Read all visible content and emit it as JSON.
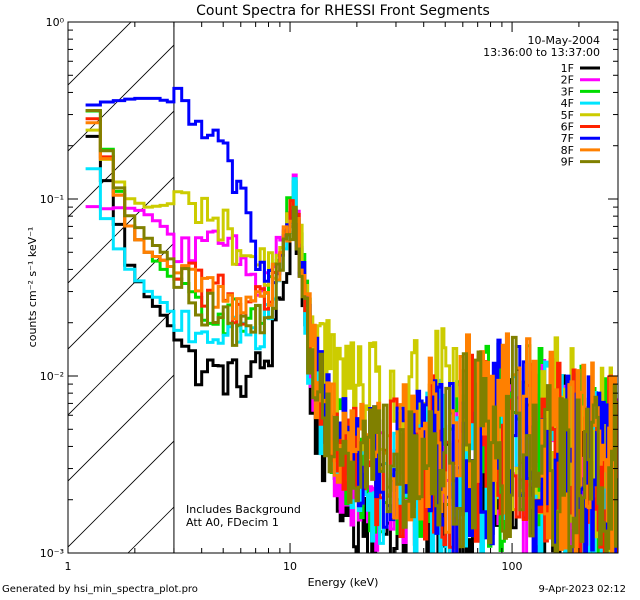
{
  "chart_data": {
    "type": "line",
    "title": "Count Spectra for RHESSI Front Segments",
    "xlabel": "Energy (keV)",
    "ylabel": "counts cm⁻² s⁻¹ keV⁻¹",
    "xscale": "log",
    "yscale": "log",
    "xlim": [
      1,
      300
    ],
    "ylim": [
      0.001,
      1
    ],
    "x_tick_labels": [
      {
        "value": 1,
        "label": "1"
      },
      {
        "value": 10,
        "label": "10"
      },
      {
        "value": 100,
        "label": "100"
      }
    ],
    "y_tick_labels": [
      {
        "value": 1,
        "label": "10⁰"
      },
      {
        "value": 0.1,
        "label": "10⁻¹"
      },
      {
        "value": 0.01,
        "label": "10⁻²"
      },
      {
        "value": 0.001,
        "label": "10⁻³"
      }
    ],
    "date": "10-May-2004",
    "time_range": "13:36:00 to 13:37:00",
    "attenuator_boundary_keV": 3,
    "annotations": [
      "Includes Background",
      "Att A0, FDecim 1"
    ],
    "series": [
      {
        "name": "1F",
        "color": "#000000",
        "anchors": [
          [
            1.2,
            0.3
          ],
          [
            1.4,
            0.17
          ],
          [
            1.6,
            0.095
          ],
          [
            1.9,
            0.042
          ],
          [
            2.3,
            0.028
          ],
          [
            2.7,
            0.022
          ],
          [
            3.0,
            0.018
          ],
          [
            3.5,
            0.012
          ],
          [
            4.5,
            0.0105
          ],
          [
            6,
            0.0095
          ],
          [
            8,
            0.012
          ],
          [
            9.5,
            0.035
          ],
          [
            10.5,
            0.085
          ],
          [
            11.3,
            0.03
          ],
          [
            13,
            0.006
          ],
          [
            16,
            0.0028
          ],
          [
            20,
            0.0018
          ],
          [
            30,
            0.0015
          ],
          [
            50,
            0.0022
          ],
          [
            80,
            0.0026
          ],
          [
            100,
            0.0032
          ],
          [
            150,
            0.0028
          ],
          [
            200,
            0.0022
          ],
          [
            280,
            0.0018
          ]
        ]
      },
      {
        "name": "2F",
        "color": "#ff00ff",
        "anchors": [
          [
            1.2,
            0.092
          ],
          [
            1.5,
            0.088
          ],
          [
            1.8,
            0.09
          ],
          [
            2.2,
            0.085
          ],
          [
            2.7,
            0.07
          ],
          [
            3.2,
            0.055
          ],
          [
            4,
            0.05
          ],
          [
            5,
            0.055
          ],
          [
            6,
            0.045
          ],
          [
            7,
            0.032
          ],
          [
            8,
            0.035
          ],
          [
            9.5,
            0.07
          ],
          [
            10.5,
            0.11
          ],
          [
            11.3,
            0.04
          ],
          [
            13,
            0.008
          ],
          [
            16,
            0.0035
          ],
          [
            20,
            0.0025
          ],
          [
            30,
            0.002
          ],
          [
            50,
            0.0026
          ],
          [
            80,
            0.003
          ],
          [
            100,
            0.0035
          ],
          [
            150,
            0.003
          ],
          [
            200,
            0.0025
          ],
          [
            280,
            0.002
          ]
        ]
      },
      {
        "name": "3F",
        "color": "#00dd00",
        "anchors": [
          [
            1.2,
            0.38
          ],
          [
            1.4,
            0.26
          ],
          [
            1.6,
            0.14
          ],
          [
            1.9,
            0.07
          ],
          [
            2.3,
            0.05
          ],
          [
            2.7,
            0.04
          ],
          [
            3.0,
            0.035
          ],
          [
            3.5,
            0.028
          ],
          [
            4.5,
            0.025
          ],
          [
            6,
            0.02
          ],
          [
            8,
            0.025
          ],
          [
            9.5,
            0.06
          ],
          [
            10.5,
            0.13
          ],
          [
            11.3,
            0.045
          ],
          [
            13,
            0.009
          ],
          [
            16,
            0.004
          ],
          [
            20,
            0.003
          ],
          [
            30,
            0.0028
          ],
          [
            50,
            0.0036
          ],
          [
            80,
            0.004
          ],
          [
            100,
            0.0042
          ],
          [
            150,
            0.0035
          ],
          [
            200,
            0.003
          ],
          [
            280,
            0.0028
          ]
        ]
      },
      {
        "name": "4F",
        "color": "#00e5ff",
        "anchors": [
          [
            1.2,
            0.22
          ],
          [
            1.4,
            0.1
          ],
          [
            1.6,
            0.06
          ],
          [
            1.9,
            0.04
          ],
          [
            2.3,
            0.03
          ],
          [
            2.7,
            0.026
          ],
          [
            3.0,
            0.022
          ],
          [
            3.5,
            0.02
          ],
          [
            4.5,
            0.018
          ],
          [
            6,
            0.016
          ],
          [
            8,
            0.02
          ],
          [
            9.5,
            0.05
          ],
          [
            10.5,
            0.1
          ],
          [
            11.3,
            0.035
          ],
          [
            13,
            0.008
          ],
          [
            16,
            0.0032
          ],
          [
            20,
            0.0022
          ],
          [
            30,
            0.0022
          ],
          [
            50,
            0.003
          ],
          [
            80,
            0.0032
          ],
          [
            100,
            0.0036
          ],
          [
            150,
            0.0032
          ],
          [
            200,
            0.0026
          ],
          [
            280,
            0.0022
          ]
        ]
      },
      {
        "name": "5F",
        "color": "#cccc00",
        "anchors": [
          [
            1.2,
            0.3
          ],
          [
            1.4,
            0.2
          ],
          [
            1.6,
            0.14
          ],
          [
            1.9,
            0.1
          ],
          [
            2.3,
            0.09
          ],
          [
            2.7,
            0.092
          ],
          [
            3.0,
            0.095
          ],
          [
            3.5,
            0.095
          ],
          [
            4,
            0.092
          ],
          [
            5,
            0.07
          ],
          [
            6,
            0.05
          ],
          [
            7,
            0.045
          ],
          [
            8,
            0.04
          ],
          [
            9.5,
            0.06
          ],
          [
            10.5,
            0.085
          ],
          [
            11.3,
            0.05
          ],
          [
            13,
            0.02
          ],
          [
            16,
            0.01
          ],
          [
            20,
            0.008
          ],
          [
            30,
            0.006
          ],
          [
            50,
            0.0055
          ],
          [
            80,
            0.005
          ],
          [
            100,
            0.0055
          ],
          [
            150,
            0.0045
          ],
          [
            200,
            0.0038
          ],
          [
            280,
            0.0032
          ]
        ]
      },
      {
        "name": "6F",
        "color": "#ff2200",
        "anchors": [
          [
            1.2,
            0.35
          ],
          [
            1.4,
            0.23
          ],
          [
            1.6,
            0.13
          ],
          [
            1.9,
            0.07
          ],
          [
            2.3,
            0.05
          ],
          [
            2.7,
            0.045
          ],
          [
            3.0,
            0.04
          ],
          [
            3.5,
            0.035
          ],
          [
            4.5,
            0.03
          ],
          [
            6,
            0.025
          ],
          [
            8,
            0.028
          ],
          [
            9.5,
            0.06
          ],
          [
            10.5,
            0.1
          ],
          [
            11.3,
            0.04
          ],
          [
            13,
            0.009
          ],
          [
            16,
            0.0045
          ],
          [
            20,
            0.0035
          ],
          [
            30,
            0.003
          ],
          [
            50,
            0.0038
          ],
          [
            80,
            0.0042
          ],
          [
            100,
            0.0046
          ],
          [
            150,
            0.0038
          ],
          [
            200,
            0.0032
          ],
          [
            280,
            0.0028
          ]
        ]
      },
      {
        "name": "7F",
        "color": "#0000ff",
        "anchors": [
          [
            1.2,
            0.33
          ],
          [
            1.4,
            0.35
          ],
          [
            1.7,
            0.36
          ],
          [
            2.0,
            0.37
          ],
          [
            2.5,
            0.37
          ],
          [
            3.0,
            0.35
          ],
          [
            3.5,
            0.3
          ],
          [
            4.0,
            0.25
          ],
          [
            4.5,
            0.2
          ],
          [
            5,
            0.17
          ],
          [
            5.5,
            0.15
          ],
          [
            6.3,
            0.1
          ],
          [
            7,
            0.05
          ],
          [
            8,
            0.035
          ],
          [
            9.5,
            0.055
          ],
          [
            10.5,
            0.08
          ],
          [
            11.3,
            0.04
          ],
          [
            13,
            0.012
          ],
          [
            16,
            0.005
          ],
          [
            20,
            0.0035
          ],
          [
            30,
            0.0028
          ],
          [
            50,
            0.0035
          ],
          [
            80,
            0.004
          ],
          [
            100,
            0.0042
          ],
          [
            150,
            0.0035
          ],
          [
            200,
            0.0028
          ],
          [
            280,
            0.0022
          ]
        ]
      },
      {
        "name": "8F",
        "color": "#ff8000",
        "anchors": [
          [
            1.2,
            0.33
          ],
          [
            1.4,
            0.22
          ],
          [
            1.6,
            0.13
          ],
          [
            1.9,
            0.07
          ],
          [
            2.3,
            0.05
          ],
          [
            2.7,
            0.045
          ],
          [
            3.0,
            0.04
          ],
          [
            3.5,
            0.035
          ],
          [
            4.5,
            0.03
          ],
          [
            6,
            0.026
          ],
          [
            8,
            0.03
          ],
          [
            9.5,
            0.06
          ],
          [
            10.5,
            0.09
          ],
          [
            11.3,
            0.04
          ],
          [
            13,
            0.01
          ],
          [
            16,
            0.005
          ],
          [
            20,
            0.004
          ],
          [
            30,
            0.0035
          ],
          [
            50,
            0.0042
          ],
          [
            80,
            0.0046
          ],
          [
            100,
            0.005
          ],
          [
            150,
            0.0042
          ],
          [
            200,
            0.0036
          ],
          [
            280,
            0.003
          ]
        ]
      },
      {
        "name": "9F",
        "color": "#808000",
        "anchors": [
          [
            1.2,
            0.4
          ],
          [
            1.4,
            0.25
          ],
          [
            1.6,
            0.14
          ],
          [
            1.9,
            0.08
          ],
          [
            2.3,
            0.06
          ],
          [
            2.7,
            0.05
          ],
          [
            3.0,
            0.044
          ],
          [
            3.5,
            0.032
          ],
          [
            4.5,
            0.022
          ],
          [
            6,
            0.018
          ],
          [
            8,
            0.02
          ],
          [
            9.5,
            0.05
          ],
          [
            10.5,
            0.08
          ],
          [
            11.3,
            0.035
          ],
          [
            13,
            0.009
          ],
          [
            16,
            0.0045
          ],
          [
            20,
            0.0035
          ],
          [
            30,
            0.003
          ],
          [
            50,
            0.0036
          ],
          [
            80,
            0.004
          ],
          [
            100,
            0.0044
          ],
          [
            150,
            0.0036
          ],
          [
            200,
            0.003
          ],
          [
            280,
            0.0026
          ]
        ]
      }
    ]
  },
  "footer": {
    "generated_by": "Generated by hsi_min_spectra_plot.pro",
    "timestamp": "9-Apr-2023 02:12"
  }
}
